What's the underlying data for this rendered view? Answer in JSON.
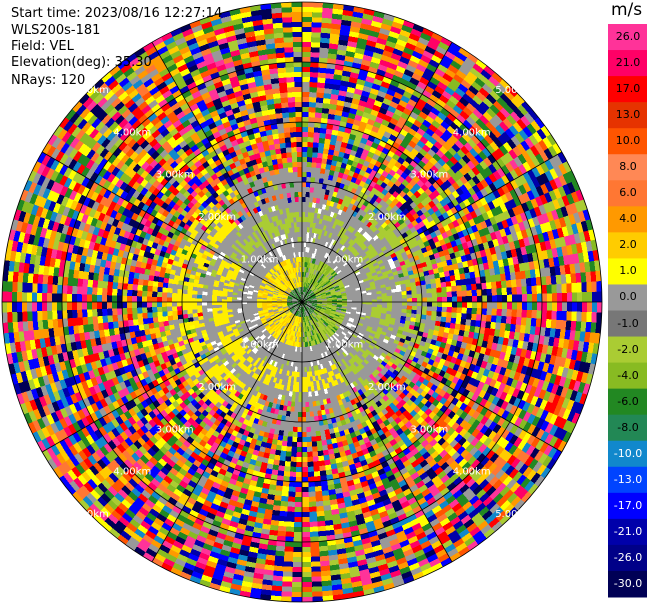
{
  "header": {
    "start_time_label": "Start time:",
    "start_time": "2023/08/16 12:27:14",
    "station": "WLS200s-181",
    "field_label": "Field:",
    "field": "VEL",
    "elevation_label": "Elevation(deg):",
    "elevation": "35.30",
    "nrays_label": "NRays:",
    "nrays": "120"
  },
  "ppi": {
    "range_rings_km": [
      "1.00km",
      "2.00km",
      "3.00km",
      "4.00km",
      "5.00km"
    ],
    "nrays": 120
  },
  "colorbar": {
    "unit": "m/s",
    "ticks": [
      "26.0",
      "21.0",
      "17.0",
      "13.0",
      "10.0",
      "8.0",
      "6.0",
      "4.0",
      "2.0",
      "1.0",
      "0.0",
      "-1.0",
      "-2.0",
      "-4.0",
      "-6.0",
      "-8.0",
      "-10.0",
      "-13.0",
      "-17.0",
      "-21.0",
      "-26.0",
      "-30.0"
    ],
    "colors": [
      "#ff3399",
      "#ff0066",
      "#ff0000",
      "#e63300",
      "#ff5500",
      "#ff8855",
      "#ff7733",
      "#ff9900",
      "#ffcc00",
      "#ffff00",
      "#999999",
      "#777777",
      "#aacc33",
      "#88bb22",
      "#228822",
      "#228855",
      "#1188cc",
      "#0044ff",
      "#0000ff",
      "#0000aa",
      "#000088",
      "#000055"
    ]
  }
}
